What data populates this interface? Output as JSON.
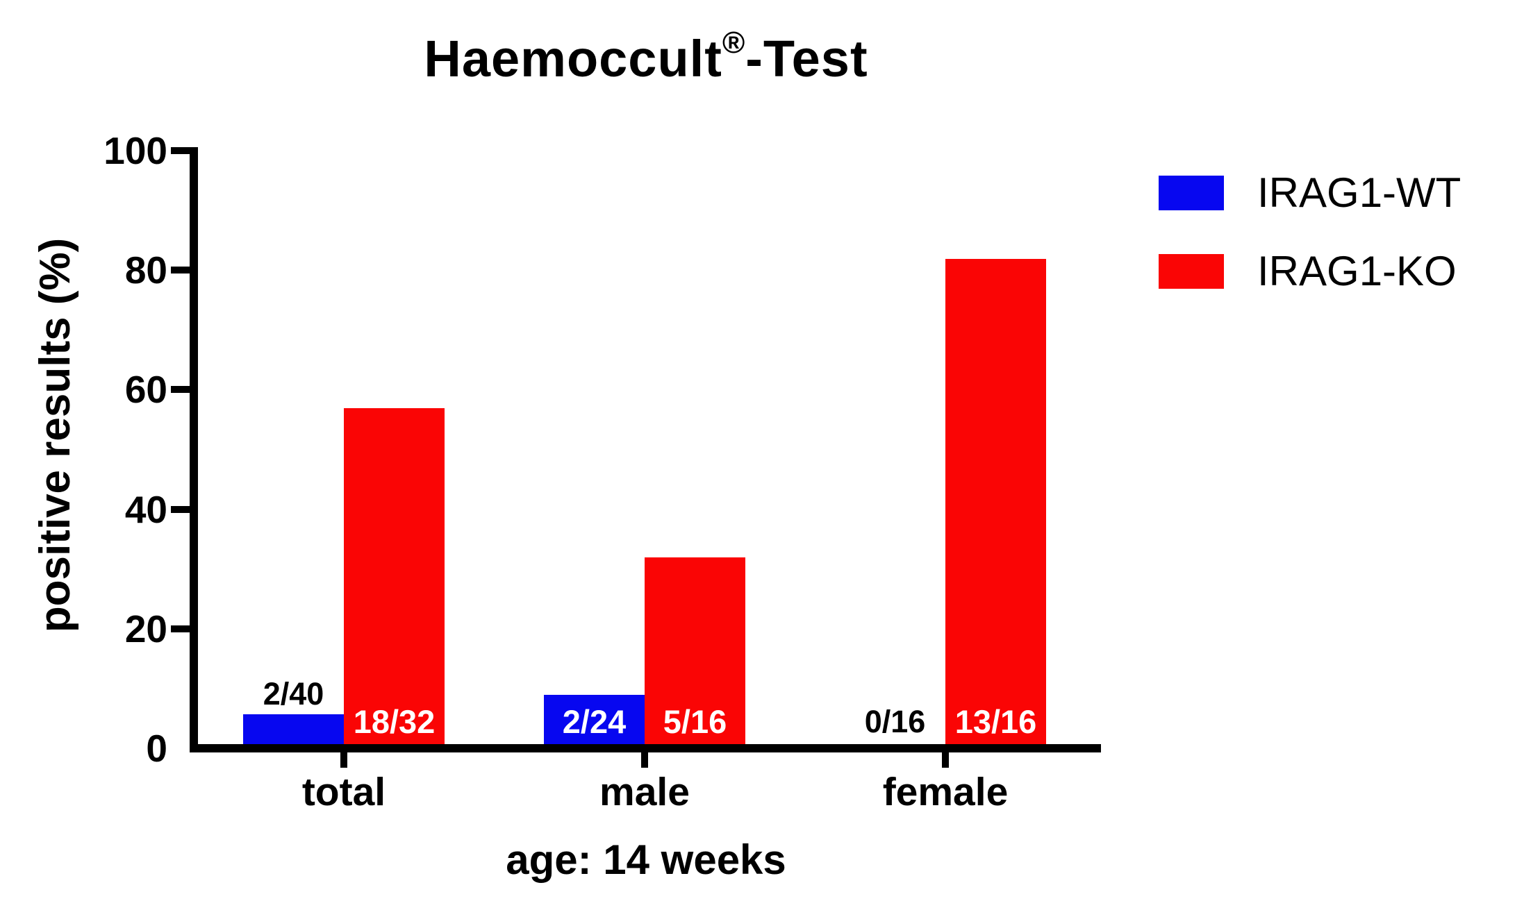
{
  "chart_data": {
    "type": "bar",
    "title": {
      "main": "Haemoccult",
      "registered_mark": "®",
      "suffix": "-Test"
    },
    "ylabel": "positive results (%)",
    "xlabel": "age: 14 weeks",
    "categories": [
      "total",
      "male",
      "female"
    ],
    "series": [
      {
        "name": "IRAG1-WT",
        "color": "#0707F0",
        "values": [
          5.0,
          8.3,
          0.0
        ],
        "point_labels": [
          "2/40",
          "2/24",
          "0/16"
        ],
        "label_styles": [
          "above",
          "inside",
          "baseline"
        ],
        "inside_label_color": "#ffffff",
        "outside_label_color": "#000000"
      },
      {
        "name": "IRAG1-KO",
        "color": "#FA0505",
        "values": [
          56.3,
          31.3,
          81.3
        ],
        "point_labels": [
          "18/32",
          "5/16",
          "13/16"
        ],
        "label_styles": [
          "inside",
          "inside",
          "inside"
        ],
        "inside_label_color": "#ffffff",
        "outside_label_color": "#000000"
      }
    ],
    "yticks": [
      0,
      20,
      40,
      60,
      80,
      100
    ],
    "ylim": [
      0,
      100
    ],
    "grid": false,
    "legend_position": "upper right",
    "axis_color": "#000000",
    "background": "#FFFFFF"
  }
}
